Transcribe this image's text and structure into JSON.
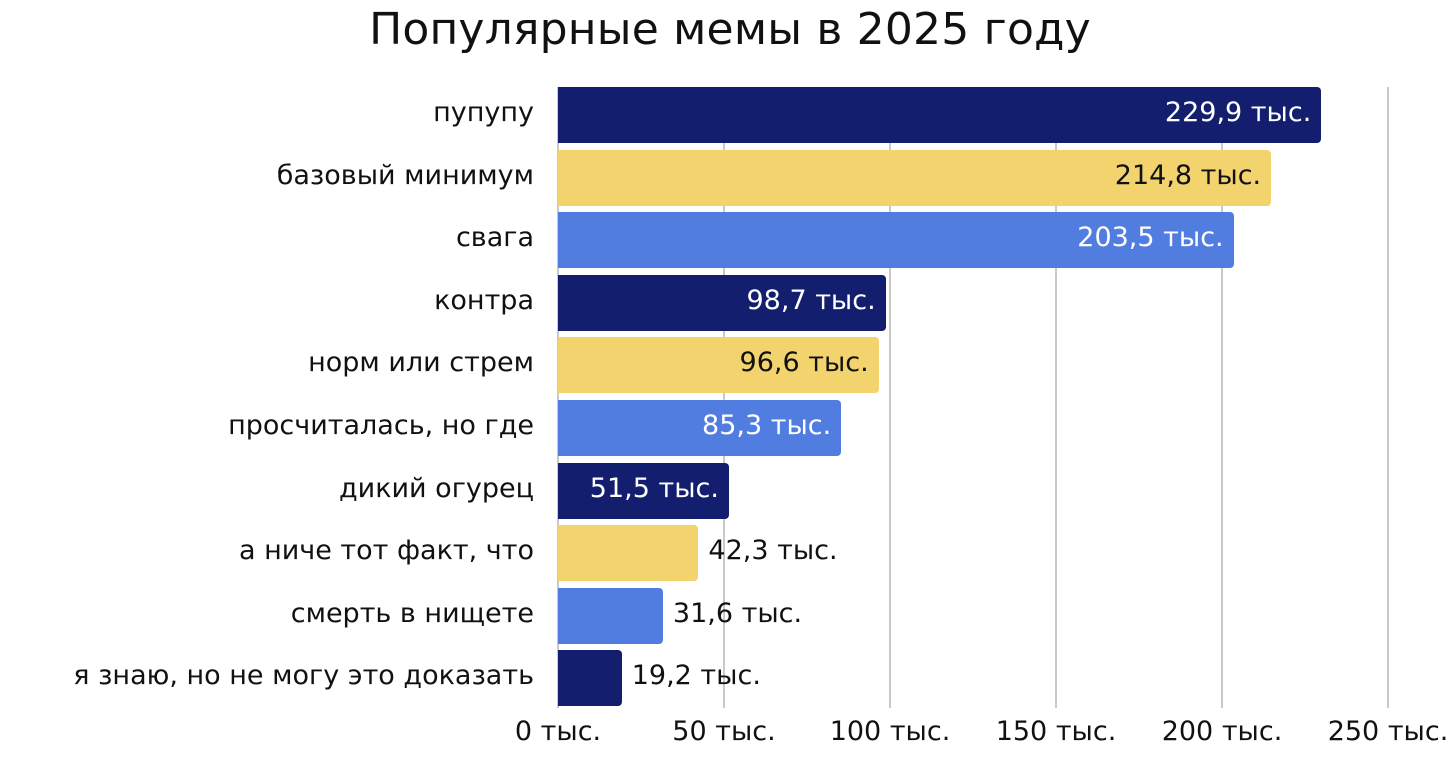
{
  "chart": {
    "title": "Популярные мемы в 2025 году",
    "colors": {
      "navy": "#131f6e",
      "yellow": "#f3d36e",
      "blue": "#527de0",
      "grid": "#c9c9c9"
    }
  },
  "chart_data": {
    "type": "bar",
    "orientation": "horizontal",
    "title": "Популярные мемы в 2025 году",
    "xlabel": "",
    "ylabel": "",
    "xlim": [
      0,
      250
    ],
    "unit": "тыс.",
    "grid": true,
    "legend": null,
    "categories": [
      "пупупу",
      "базовый минимум",
      "свага",
      "контра",
      "норм или стрем",
      "просчиталась, но где",
      "дикий огурец",
      "а ниче тот факт, что",
      "смерть в нищете",
      "я знаю, но не могу это доказать"
    ],
    "values": [
      229.9,
      214.8,
      203.5,
      98.7,
      96.6,
      85.3,
      51.5,
      42.3,
      31.6,
      19.2
    ],
    "data_labels": [
      "229,9 тыс.",
      "214,8 тыс.",
      "203,5 тыс.",
      "98,7 тыс.",
      "96,6 тыс.",
      "85,3 тыс.",
      "51,5 тыс.",
      "42,3 тыс.",
      "31,6 тыс.",
      "19,2 тыс."
    ],
    "bar_colors": [
      "#131f6e",
      "#f3d36e",
      "#527de0",
      "#131f6e",
      "#f3d36e",
      "#527de0",
      "#131f6e",
      "#f3d36e",
      "#527de0",
      "#131f6e"
    ],
    "label_inside": [
      true,
      true,
      true,
      true,
      true,
      true,
      true,
      false,
      false,
      false
    ],
    "label_colors": [
      "#ffffff",
      "#111111",
      "#ffffff",
      "#ffffff",
      "#111111",
      "#ffffff",
      "#ffffff",
      "#111111",
      "#111111",
      "#111111"
    ],
    "x_ticks": [
      0,
      50,
      100,
      150,
      200,
      250
    ],
    "x_tick_labels": [
      "0 тыс.",
      "50 тыс.",
      "100 тыс.",
      "150 тыс.",
      "200 тыс.",
      "250 тыс."
    ]
  }
}
